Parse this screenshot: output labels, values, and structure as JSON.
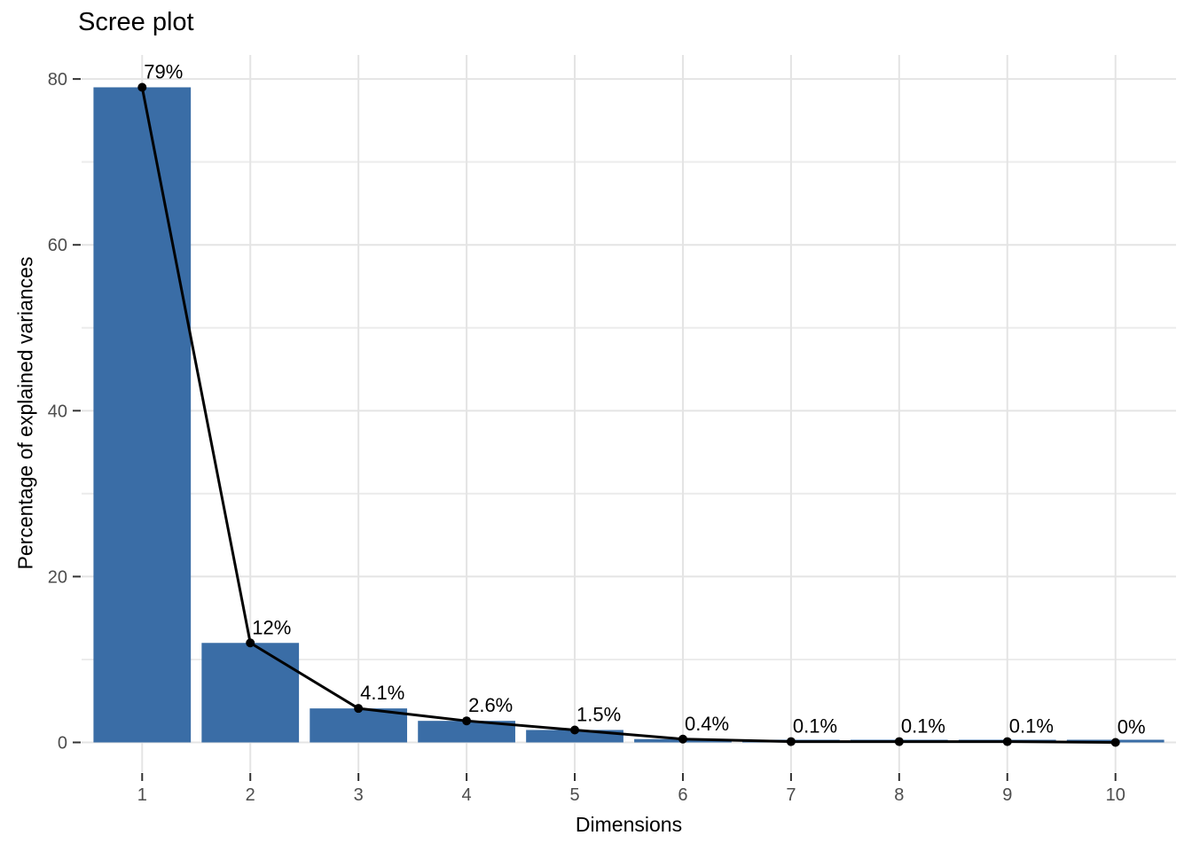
{
  "chart_data": {
    "type": "bar",
    "subtype": "scree-plot-with-line-overlay",
    "title": "Scree plot",
    "xlabel": "Dimensions",
    "ylabel": "Percentage of explained variances",
    "categories": [
      "1",
      "2",
      "3",
      "4",
      "5",
      "6",
      "7",
      "8",
      "9",
      "10"
    ],
    "values": [
      79,
      12,
      4.1,
      2.6,
      1.5,
      0.4,
      0.1,
      0.1,
      0.1,
      0
    ],
    "point_labels": [
      "79%",
      "12%",
      "4.1%",
      "2.6%",
      "1.5%",
      "0.4%",
      "0.1%",
      "0.1%",
      "0.1%",
      "0%"
    ],
    "overlay": {
      "type": "line",
      "uses": "values",
      "show_points": true
    },
    "ytick_labels": [
      "0",
      "20",
      "40",
      "60",
      "80"
    ],
    "yticks": [
      0,
      20,
      40,
      60,
      80
    ],
    "y_minor_gridlines": [
      10,
      30,
      50,
      70
    ],
    "ylim": [
      -3.58,
      82.9
    ],
    "xlim": [
      0.44,
      10.56
    ],
    "bar_width_units": 0.9,
    "grid": "on",
    "legend": "none",
    "colors": {
      "bar_fill": "#3A6DA6",
      "line": "#000000",
      "point": "#000000",
      "label_text": "#000000",
      "title_text": "#000000",
      "tick_label": "#4D4D4D",
      "tick_mark": "#333333",
      "gridline_major": "#E4E4E4",
      "gridline_minor": "#ECECEC",
      "background": "#FFFFFF"
    }
  }
}
